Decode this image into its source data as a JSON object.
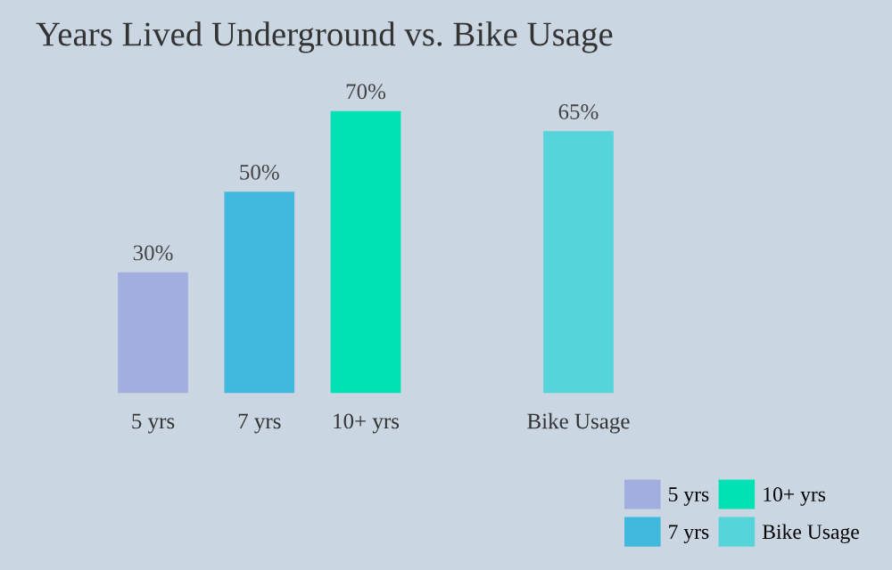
{
  "chart_data": {
    "type": "bar",
    "title": "Years Lived Underground vs. Bike Usage",
    "categories": [
      "5 yrs",
      "7 yrs",
      "10+ yrs",
      null,
      "Bike Usage"
    ],
    "series": [
      {
        "name": "5 yrs",
        "color": "#a3aee0",
        "values": [
          30,
          null,
          null,
          null,
          null
        ],
        "value_labels": [
          "30%",
          null,
          null,
          null,
          null
        ]
      },
      {
        "name": "7 yrs",
        "color": "#41b8de",
        "values": [
          null,
          50,
          null,
          null,
          null
        ],
        "value_labels": [
          null,
          "50%",
          null,
          null,
          null
        ]
      },
      {
        "name": "10+ yrs",
        "color": "#00e2b3",
        "values": [
          null,
          null,
          70,
          null,
          null
        ],
        "value_labels": [
          null,
          null,
          "70%",
          null,
          null
        ]
      },
      {
        "name": "Bike Usage",
        "color": "#55d4da",
        "values": [
          null,
          null,
          null,
          null,
          65
        ],
        "value_labels": [
          null,
          null,
          null,
          null,
          "65%"
        ]
      }
    ],
    "legend": "bottom right",
    "grid": false
  }
}
